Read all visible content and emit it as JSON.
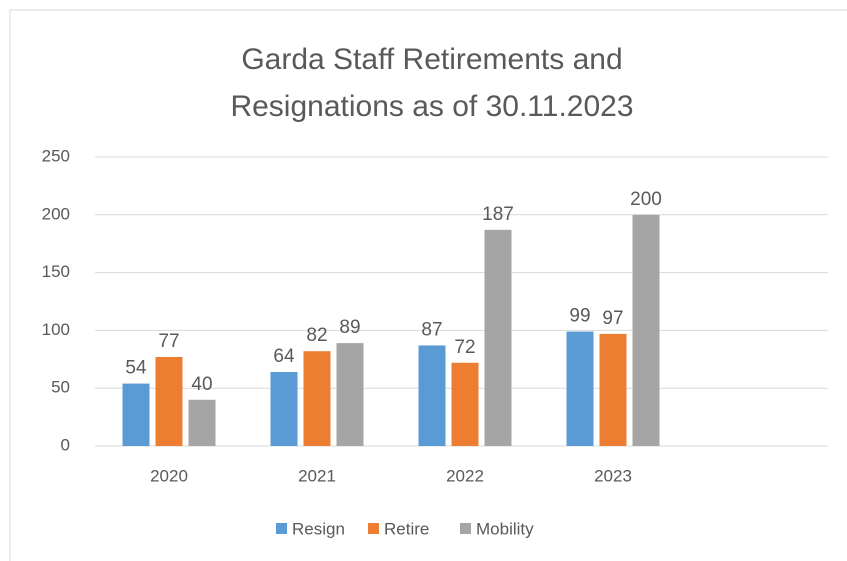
{
  "chart_data": {
    "type": "bar",
    "title": "Garda Staff Retirements and Resignations as of 30.11.2023",
    "categories": [
      "2020",
      "2021",
      "2022",
      "2023",
      null
    ],
    "series": [
      {
        "name": "Resign",
        "color": "#5b9bd5",
        "values": [
          54,
          64,
          87,
          99,
          null
        ]
      },
      {
        "name": "Retire",
        "color": "#ed7d31",
        "values": [
          77,
          82,
          72,
          97,
          null
        ]
      },
      {
        "name": "Mobility",
        "color": "#a5a5a5",
        "values": [
          40,
          89,
          187,
          200,
          null
        ]
      }
    ],
    "ylim": [
      0,
      250
    ],
    "yticks": [
      0,
      50,
      100,
      150,
      200,
      250
    ],
    "grid": true,
    "legend": "bottom"
  }
}
